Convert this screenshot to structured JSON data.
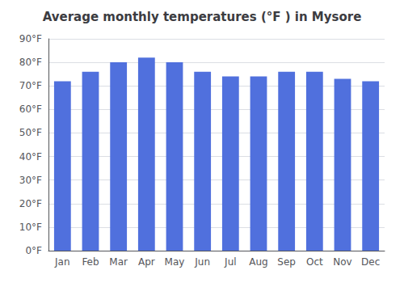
{
  "chart_data": {
    "type": "bar",
    "title": "Average monthly temperatures (°F ) in Mysore",
    "categories": [
      "Jan",
      "Feb",
      "Mar",
      "Apr",
      "May",
      "Jun",
      "Jul",
      "Aug",
      "Sep",
      "Oct",
      "Nov",
      "Dec"
    ],
    "values": [
      72,
      76,
      80,
      82,
      80,
      76,
      74,
      74,
      76,
      76,
      73,
      72
    ],
    "ylim": [
      0,
      90
    ],
    "yticks": [
      {
        "value": 0,
        "label": "0°F"
      },
      {
        "value": 10,
        "label": "10°F"
      },
      {
        "value": 20,
        "label": "20°F"
      },
      {
        "value": 30,
        "label": "30°F"
      },
      {
        "value": 40,
        "label": "40°F"
      },
      {
        "value": 50,
        "label": "50°F"
      },
      {
        "value": 60,
        "label": "60°F"
      },
      {
        "value": 70,
        "label": "70°F"
      },
      {
        "value": 80,
        "label": "80°F"
      },
      {
        "value": 90,
        "label": "90°F"
      }
    ],
    "grid": true
  }
}
